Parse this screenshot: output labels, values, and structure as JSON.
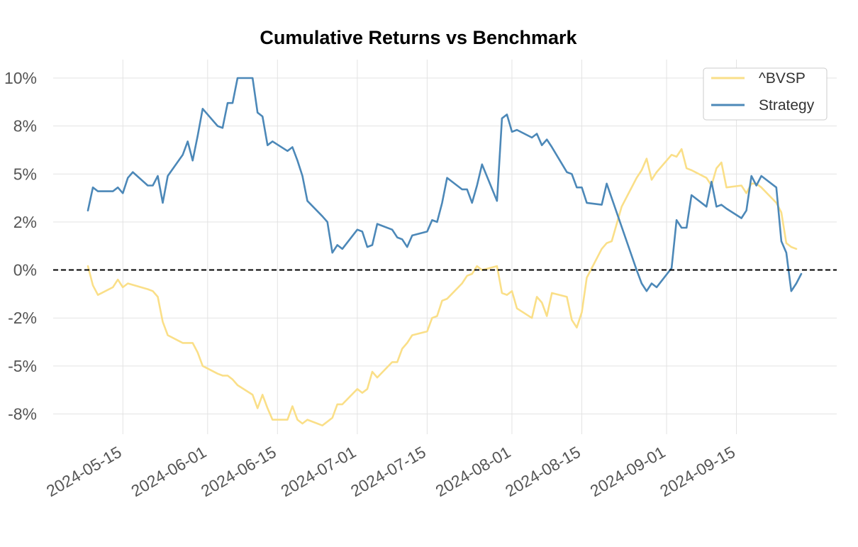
{
  "chart_data": {
    "type": "line",
    "title": "Cumulative Returns vs Benchmark",
    "xlabel": "",
    "ylabel": "",
    "xlim": [
      "2024-05-08",
      "2024-09-28"
    ],
    "ylim": [
      -0.08,
      0.1
    ],
    "x_ticks": [
      "2024-05-15",
      "2024-06-01",
      "2024-06-15",
      "2024-07-01",
      "2024-07-15",
      "2024-08-01",
      "2024-08-15",
      "2024-09-01",
      "2024-09-15"
    ],
    "y_ticks": [
      -0.075,
      -0.05,
      -0.025,
      0.0,
      0.025,
      0.05,
      0.075,
      0.1
    ],
    "y_tick_labels": [
      "-8%",
      "-5%",
      "-2%",
      "0%",
      "2%",
      "5%",
      "8%",
      "10%"
    ],
    "grid": true,
    "legend_position": "top-right",
    "reference_line": {
      "y": 0.0,
      "style": "dashed",
      "color": "#000000"
    },
    "series": [
      {
        "name": "^BVSP",
        "color": "#FADF88",
        "points": [
          [
            "2024-05-08",
            0.002
          ],
          [
            "2024-05-09",
            -0.008
          ],
          [
            "2024-05-10",
            -0.013
          ],
          [
            "2024-05-13",
            -0.009
          ],
          [
            "2024-05-14",
            -0.005
          ],
          [
            "2024-05-15",
            -0.009
          ],
          [
            "2024-05-16",
            -0.007
          ],
          [
            "2024-05-20",
            -0.01
          ],
          [
            "2024-05-21",
            -0.011
          ],
          [
            "2024-05-22",
            -0.014
          ],
          [
            "2024-05-23",
            -0.027
          ],
          [
            "2024-05-24",
            -0.034
          ],
          [
            "2024-05-27",
            -0.038
          ],
          [
            "2024-05-29",
            -0.038
          ],
          [
            "2024-05-30",
            -0.043
          ],
          [
            "2024-05-31",
            -0.05
          ],
          [
            "2024-06-03",
            -0.054
          ],
          [
            "2024-06-04",
            -0.055
          ],
          [
            "2024-06-05",
            -0.055
          ],
          [
            "2024-06-06",
            -0.057
          ],
          [
            "2024-06-07",
            -0.06
          ],
          [
            "2024-06-10",
            -0.065
          ],
          [
            "2024-06-11",
            -0.072
          ],
          [
            "2024-06-12",
            -0.065
          ],
          [
            "2024-06-13",
            -0.072
          ],
          [
            "2024-06-14",
            -0.078
          ],
          [
            "2024-06-17",
            -0.078
          ],
          [
            "2024-06-18",
            -0.071
          ],
          [
            "2024-06-19",
            -0.078
          ],
          [
            "2024-06-20",
            -0.08
          ],
          [
            "2024-06-21",
            -0.078
          ],
          [
            "2024-06-24",
            -0.081
          ],
          [
            "2024-06-25",
            -0.079
          ],
          [
            "2024-06-26",
            -0.077
          ],
          [
            "2024-06-27",
            -0.07
          ],
          [
            "2024-06-28",
            -0.07
          ],
          [
            "2024-07-01",
            -0.062
          ],
          [
            "2024-07-02",
            -0.064
          ],
          [
            "2024-07-03",
            -0.062
          ],
          [
            "2024-07-04",
            -0.053
          ],
          [
            "2024-07-05",
            -0.056
          ],
          [
            "2024-07-08",
            -0.048
          ],
          [
            "2024-07-09",
            -0.048
          ],
          [
            "2024-07-10",
            -0.041
          ],
          [
            "2024-07-11",
            -0.038
          ],
          [
            "2024-07-12",
            -0.034
          ],
          [
            "2024-07-15",
            -0.032
          ],
          [
            "2024-07-16",
            -0.025
          ],
          [
            "2024-07-17",
            -0.024
          ],
          [
            "2024-07-18",
            -0.016
          ],
          [
            "2024-07-19",
            -0.015
          ],
          [
            "2024-07-22",
            -0.007
          ],
          [
            "2024-07-23",
            -0.003
          ],
          [
            "2024-07-24",
            -0.002
          ],
          [
            "2024-07-25",
            0.002
          ],
          [
            "2024-07-26",
            0.0
          ],
          [
            "2024-07-29",
            0.002
          ],
          [
            "2024-07-30",
            -0.012
          ],
          [
            "2024-07-31",
            -0.013
          ],
          [
            "2024-08-01",
            -0.011
          ],
          [
            "2024-08-02",
            -0.02
          ],
          [
            "2024-08-05",
            -0.025
          ],
          [
            "2024-08-06",
            -0.014
          ],
          [
            "2024-08-07",
            -0.017
          ],
          [
            "2024-08-08",
            -0.024
          ],
          [
            "2024-08-09",
            -0.012
          ],
          [
            "2024-08-12",
            -0.014
          ],
          [
            "2024-08-13",
            -0.026
          ],
          [
            "2024-08-14",
            -0.03
          ],
          [
            "2024-08-15",
            -0.022
          ],
          [
            "2024-08-16",
            -0.004
          ],
          [
            "2024-08-19",
            0.011
          ],
          [
            "2024-08-20",
            0.014
          ],
          [
            "2024-08-21",
            0.015
          ],
          [
            "2024-08-22",
            0.024
          ],
          [
            "2024-08-23",
            0.033
          ],
          [
            "2024-08-26",
            0.048
          ],
          [
            "2024-08-27",
            0.052
          ],
          [
            "2024-08-28",
            0.058
          ],
          [
            "2024-08-29",
            0.047
          ],
          [
            "2024-08-30",
            0.051
          ],
          [
            "2024-09-02",
            0.06
          ],
          [
            "2024-09-03",
            0.059
          ],
          [
            "2024-09-04",
            0.063
          ],
          [
            "2024-09-05",
            0.053
          ],
          [
            "2024-09-06",
            0.052
          ],
          [
            "2024-09-09",
            0.048
          ],
          [
            "2024-09-10",
            0.044
          ],
          [
            "2024-09-11",
            0.053
          ],
          [
            "2024-09-12",
            0.056
          ],
          [
            "2024-09-13",
            0.043
          ],
          [
            "2024-09-16",
            0.044
          ],
          [
            "2024-09-17",
            0.04
          ],
          [
            "2024-09-18",
            0.045
          ],
          [
            "2024-09-19",
            0.045
          ],
          [
            "2024-09-20",
            0.043
          ],
          [
            "2024-09-23",
            0.035
          ],
          [
            "2024-09-24",
            0.03
          ],
          [
            "2024-09-25",
            0.014
          ],
          [
            "2024-09-26",
            0.012
          ],
          [
            "2024-09-27",
            0.011
          ]
        ]
      },
      {
        "name": "Strategy",
        "color": "#4C88B8",
        "points": [
          [
            "2024-05-08",
            0.031
          ],
          [
            "2024-05-09",
            0.043
          ],
          [
            "2024-05-10",
            0.041
          ],
          [
            "2024-05-13",
            0.041
          ],
          [
            "2024-05-14",
            0.043
          ],
          [
            "2024-05-15",
            0.04
          ],
          [
            "2024-05-16",
            0.048
          ],
          [
            "2024-05-17",
            0.051
          ],
          [
            "2024-05-20",
            0.044
          ],
          [
            "2024-05-21",
            0.044
          ],
          [
            "2024-05-22",
            0.049
          ],
          [
            "2024-05-23",
            0.035
          ],
          [
            "2024-05-24",
            0.049
          ],
          [
            "2024-05-27",
            0.06
          ],
          [
            "2024-05-28",
            0.067
          ],
          [
            "2024-05-29",
            0.057
          ],
          [
            "2024-05-30",
            0.07
          ],
          [
            "2024-05-31",
            0.084
          ],
          [
            "2024-06-03",
            0.075
          ],
          [
            "2024-06-04",
            0.074
          ],
          [
            "2024-06-05",
            0.087
          ],
          [
            "2024-06-06",
            0.087
          ],
          [
            "2024-06-07",
            0.1
          ],
          [
            "2024-06-10",
            0.1
          ],
          [
            "2024-06-11",
            0.082
          ],
          [
            "2024-06-12",
            0.08
          ],
          [
            "2024-06-13",
            0.065
          ],
          [
            "2024-06-14",
            0.067
          ],
          [
            "2024-06-17",
            0.062
          ],
          [
            "2024-06-18",
            0.064
          ],
          [
            "2024-06-19",
            0.057
          ],
          [
            "2024-06-20",
            0.049
          ],
          [
            "2024-06-21",
            0.036
          ],
          [
            "2024-06-24",
            0.028
          ],
          [
            "2024-06-25",
            0.025
          ],
          [
            "2024-06-26",
            0.009
          ],
          [
            "2024-06-27",
            0.013
          ],
          [
            "2024-06-28",
            0.011
          ],
          [
            "2024-07-01",
            0.021
          ],
          [
            "2024-07-02",
            0.02
          ],
          [
            "2024-07-03",
            0.012
          ],
          [
            "2024-07-04",
            0.013
          ],
          [
            "2024-07-05",
            0.024
          ],
          [
            "2024-07-08",
            0.021
          ],
          [
            "2024-07-09",
            0.017
          ],
          [
            "2024-07-10",
            0.016
          ],
          [
            "2024-07-11",
            0.012
          ],
          [
            "2024-07-12",
            0.018
          ],
          [
            "2024-07-15",
            0.02
          ],
          [
            "2024-07-16",
            0.026
          ],
          [
            "2024-07-17",
            0.025
          ],
          [
            "2024-07-18",
            0.035
          ],
          [
            "2024-07-19",
            0.048
          ],
          [
            "2024-07-22",
            0.042
          ],
          [
            "2024-07-23",
            0.042
          ],
          [
            "2024-07-24",
            0.035
          ],
          [
            "2024-07-25",
            0.044
          ],
          [
            "2024-07-26",
            0.055
          ],
          [
            "2024-07-29",
            0.036
          ],
          [
            "2024-07-30",
            0.079
          ],
          [
            "2024-07-31",
            0.081
          ],
          [
            "2024-08-01",
            0.072
          ],
          [
            "2024-08-02",
            0.073
          ],
          [
            "2024-08-05",
            0.069
          ],
          [
            "2024-08-06",
            0.071
          ],
          [
            "2024-08-07",
            0.065
          ],
          [
            "2024-08-08",
            0.068
          ],
          [
            "2024-08-09",
            0.064
          ],
          [
            "2024-08-12",
            0.051
          ],
          [
            "2024-08-13",
            0.05
          ],
          [
            "2024-08-14",
            0.043
          ],
          [
            "2024-08-15",
            0.043
          ],
          [
            "2024-08-16",
            0.035
          ],
          [
            "2024-08-19",
            0.034
          ],
          [
            "2024-08-20",
            0.045
          ],
          [
            "2024-08-26",
            0.0
          ],
          [
            "2024-08-27",
            -0.007
          ],
          [
            "2024-08-28",
            -0.011
          ],
          [
            "2024-08-29",
            -0.007
          ],
          [
            "2024-08-30",
            -0.009
          ],
          [
            "2024-09-02",
            0.001
          ],
          [
            "2024-09-03",
            0.026
          ],
          [
            "2024-09-04",
            0.022
          ],
          [
            "2024-09-05",
            0.022
          ],
          [
            "2024-09-06",
            0.039
          ],
          [
            "2024-09-09",
            0.033
          ],
          [
            "2024-09-10",
            0.046
          ],
          [
            "2024-09-11",
            0.033
          ],
          [
            "2024-09-12",
            0.034
          ],
          [
            "2024-09-13",
            0.032
          ],
          [
            "2024-09-16",
            0.027
          ],
          [
            "2024-09-17",
            0.031
          ],
          [
            "2024-09-18",
            0.049
          ],
          [
            "2024-09-19",
            0.044
          ],
          [
            "2024-09-20",
            0.049
          ],
          [
            "2024-09-23",
            0.043
          ],
          [
            "2024-09-24",
            0.015
          ],
          [
            "2024-09-25",
            0.009
          ],
          [
            "2024-09-26",
            -0.011
          ],
          [
            "2024-09-27",
            -0.007
          ],
          [
            "2024-09-28",
            -0.002
          ]
        ]
      }
    ]
  }
}
